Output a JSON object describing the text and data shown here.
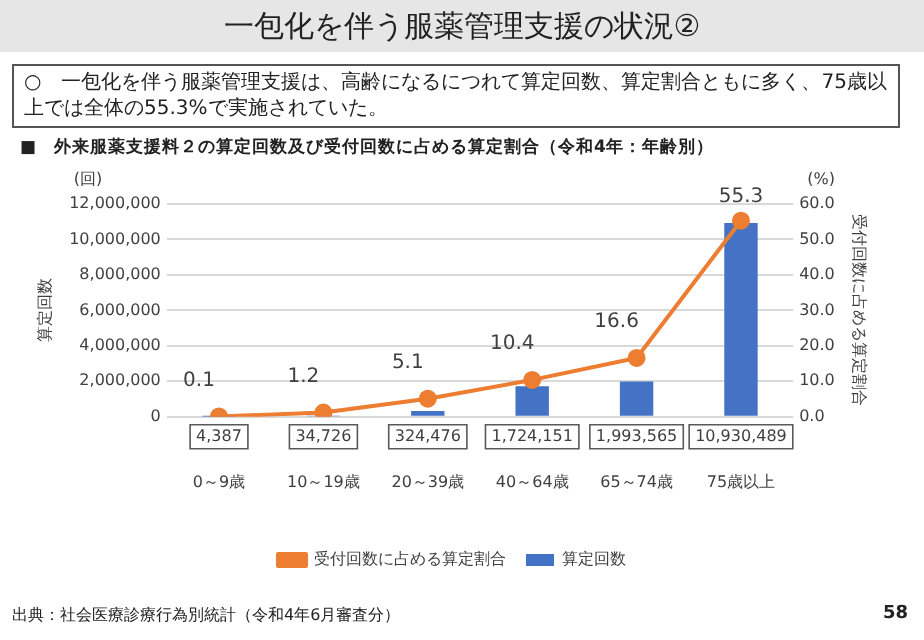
{
  "chart_data": {
    "type": "bar",
    "title": "一包化を伴う服薬管理支援の状況②",
    "subtitle": "■　外来服薬支援料２の算定回数及び受付回数に占める算定割合（令和4年：年齢別）",
    "annotations": [
      "○　一包化を伴う服薬管理支援は、高齢になるにつれて算定回数、算定割合ともに多く、75歳以上では全体の55.3%で実施されていた。",
      "(回)",
      "(%)",
      "出典：社会医療診療行為別統計（令和4年6月審査分）",
      "58"
    ],
    "ylabel": "算定回数",
    "y2label": "受付回数に占める算定割合",
    "categories": [
      "0～9歳",
      "10～19歳",
      "20～39歳",
      "40～64歳",
      "65～74歳",
      "75歳以上"
    ],
    "series": [
      {
        "name": "算定回数",
        "color": "#4472c4",
        "values": [
          4387,
          34726,
          324476,
          1724151,
          1993565,
          10930489
        ],
        "value_labels": [
          "4,387",
          "34,726",
          "324,476",
          "1,724,151",
          "1,993,565",
          "10,930,489"
        ]
      },
      {
        "name": "受付回数に占める算定割合",
        "type": "line",
        "axis": "y2",
        "color": "#ed7d31",
        "values": [
          0.1,
          1.2,
          5.1,
          10.4,
          16.6,
          55.3
        ],
        "value_labels": [
          "0.1",
          "1.2",
          "5.1",
          "10.4",
          "16.6",
          "55.3"
        ]
      }
    ],
    "ylim": [
      0,
      12000000
    ],
    "yticks": [
      0,
      {
        "value": 2000000,
        "label": "2,000,000"
      },
      {
        "value": 4000000,
        "label": "4,000,000"
      },
      {
        "value": 6000000,
        "label": "6,000,000"
      },
      {
        "value": 8000000,
        "label": "8,000,000"
      },
      {
        "value": 10000000,
        "label": "10,000,000"
      },
      {
        "value": 12000000,
        "label": "12,000,000"
      }
    ],
    "y2lim": [
      0,
      60
    ],
    "y2ticks": [
      {
        "value": 0,
        "label": "0.0"
      },
      {
        "value": 10,
        "label": "10.0"
      },
      {
        "value": 20,
        "label": "20.0"
      },
      {
        "value": 30,
        "label": "30.0"
      },
      {
        "value": 40,
        "label": "40.0"
      },
      {
        "value": 50,
        "label": "50.0"
      },
      {
        "value": 60,
        "label": "60.0"
      }
    ],
    "grid": "y",
    "legend": "bottom",
    "marker": "circle",
    "line_style": "solid"
  }
}
